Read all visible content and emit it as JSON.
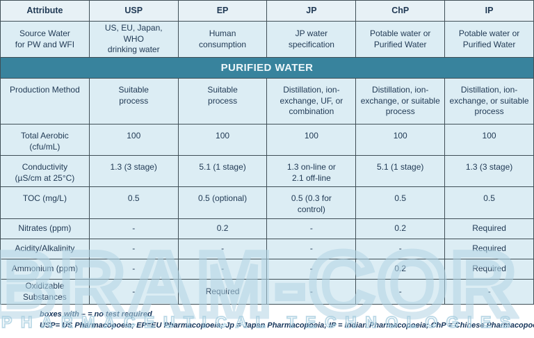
{
  "table": {
    "columns": [
      "Attribute",
      "USP",
      "EP",
      "JP",
      "ChP",
      "IP"
    ],
    "source_row": {
      "label": "Source Water\nfor PW and WFI",
      "values": [
        "US, EU, Japan,  WHO\ndrinking water",
        "Human\nconsumption",
        "JP water\nspecification",
        "Potable water or\nPurified Water",
        "Potable water or\nPurified Water"
      ]
    },
    "section_band": "PURIFIED WATER",
    "rows": [
      {
        "label": "Production Method",
        "values": [
          "Suitable\nprocess",
          "Suitable\nprocess",
          "Distillation, ion-\nexchange, UF, or\ncombination",
          "Distillation, ion-\nexchange, or suitable\nprocess",
          "Distillation, ion-\nexchange, or suitable\nprocess"
        ]
      },
      {
        "label": "Total Aerobic\n(cfu/mL)",
        "values": [
          "100",
          "100",
          "100",
          "100",
          "100"
        ]
      },
      {
        "label": "Conductivity\n(µS/cm at 25°C)",
        "values": [
          "1.3 (3 stage)",
          "5.1 (1 stage)",
          "1.3 on-line or\n2.1 off-line",
          "5.1 (1 stage)",
          "1.3 (3 stage)"
        ]
      },
      {
        "label": "TOC (mg/L)",
        "values": [
          "0.5",
          "0.5 (optional)",
          "0.5 (0.3 for\ncontrol)",
          "0.5",
          "0.5"
        ]
      },
      {
        "label": "Nitrates (ppm)",
        "values": [
          "-",
          "0.2",
          "-",
          "0.2",
          "Required"
        ]
      },
      {
        "label": "Acidity/Alkalinity",
        "values": [
          "-",
          "-",
          "-",
          "-",
          "Required"
        ]
      },
      {
        "label": "Ammonium (ppm)",
        "values": [
          "-",
          "-",
          "-",
          "0.2",
          "Required"
        ]
      },
      {
        "label": "Oxidizable Substances",
        "values": [
          "-",
          "Required",
          "-",
          "-",
          "-"
        ]
      }
    ]
  },
  "footnotes": {
    "line1": "boxes with –  =  no test required",
    "line2": "USP= US Pharmacopoeia;  EP=EU Pharmacopoeia;  Jp = Japan Pharmacopoeia;  IP = Indian Pharmacopoeia;  ChP = Chinese Pharmacopoeia"
  },
  "watermark": {
    "brand": "BRAM-COR",
    "tagline": "PHARMACEUTICAL TECHNOLOGIES"
  },
  "colors": {
    "band_teal": "#38839d",
    "cell_bg": "#dcedf4",
    "header_bg": "#e7f1f6",
    "border": "#3f4e56",
    "watermark_blue": "#b3d5e5"
  }
}
